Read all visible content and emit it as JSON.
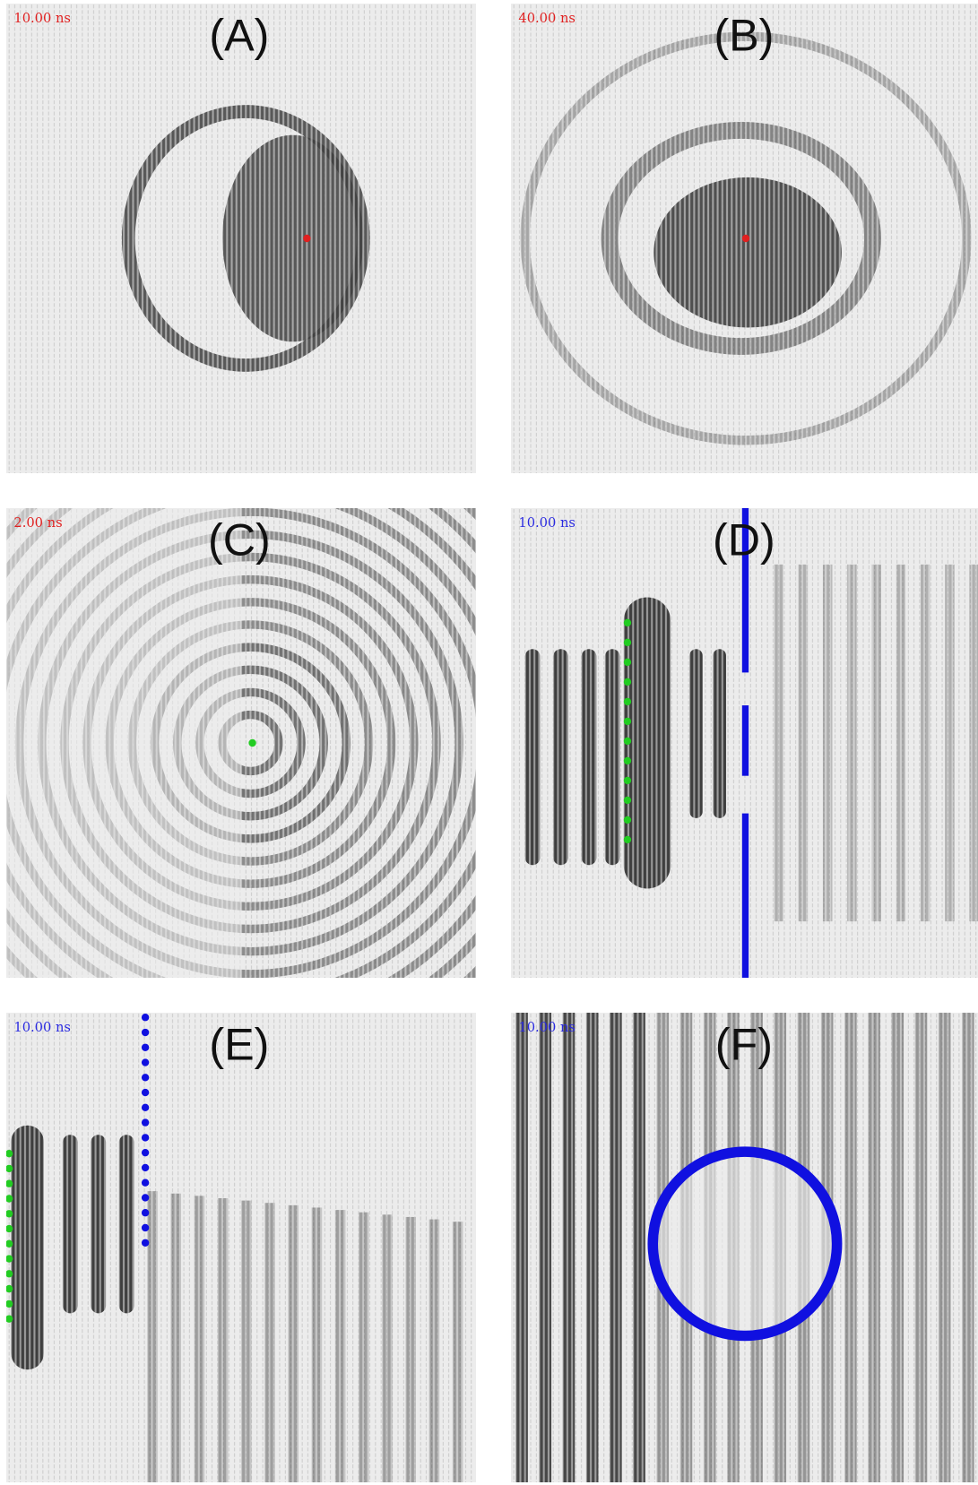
{
  "panels": [
    {
      "label": "(A)",
      "time": "10.00 ns"
    },
    {
      "label": "(B)",
      "time": "40.00 ns"
    },
    {
      "label": "(C)",
      "time": "2.00 ns"
    },
    {
      "label": "(D)",
      "time": "10.00 ns"
    },
    {
      "label": "(E)",
      "time": "10.00 ns"
    },
    {
      "label": "(F)",
      "time": "10.00 ns"
    }
  ]
}
